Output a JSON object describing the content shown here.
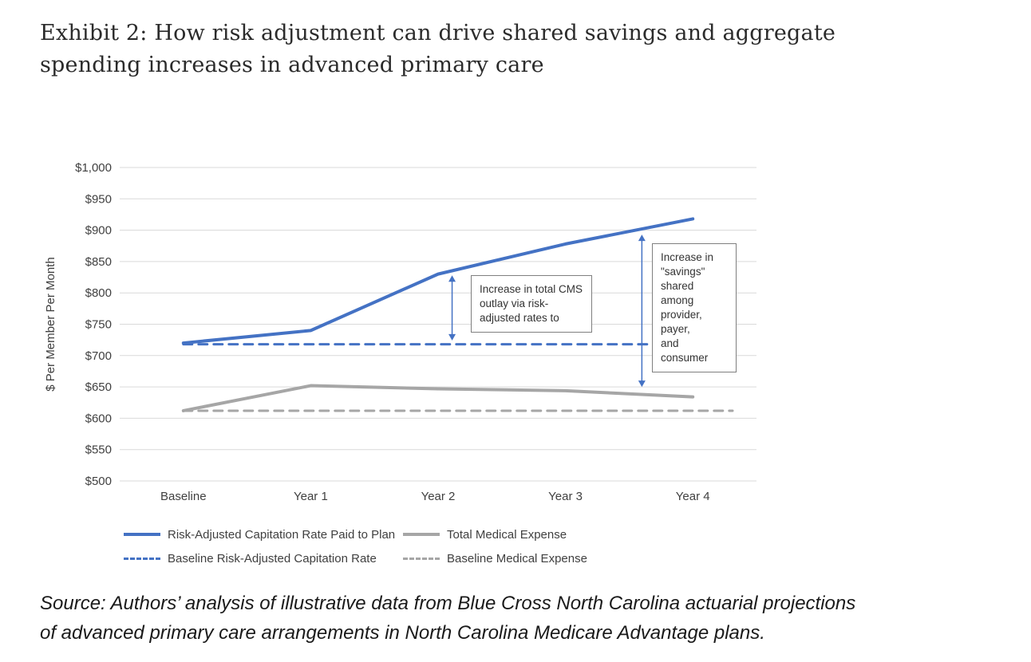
{
  "header": {
    "title_line1": "Exhibit 2: How risk adjustment can drive shared savings and aggregate",
    "title_line2": "spending increases in advanced primary care"
  },
  "chart_data": {
    "type": "line",
    "title": "",
    "xlabel": "",
    "ylabel": "$ Per Member Per Month",
    "ylim": [
      500,
      1000
    ],
    "ytick_step": 50,
    "ytick_labels": [
      "$500",
      "$550",
      "$600",
      "$650",
      "$700",
      "$750",
      "$800",
      "$850",
      "$900",
      "$950",
      "$1,000"
    ],
    "categories": [
      "Baseline",
      "Year 1",
      "Year 2",
      "Year 3",
      "Year 4"
    ],
    "grid": "horizontal",
    "legend_position": "bottom",
    "series": [
      {
        "name": "Risk-Adjusted Capitation Rate Paid to Plan",
        "color": "#4472C4",
        "dash": false,
        "stroke_width": 4,
        "values": [
          720,
          740,
          830,
          878,
          918
        ]
      },
      {
        "name": "Total Medical Expense",
        "color": "#A6A6A6",
        "dash": false,
        "stroke_width": 4,
        "values": [
          612,
          652,
          647,
          644,
          634
        ]
      },
      {
        "name": "Baseline Risk-Adjusted Capitation Rate",
        "color": "#4472C4",
        "dash": true,
        "stroke_width": 3,
        "values": [
          718,
          718,
          718,
          718,
          718
        ]
      },
      {
        "name": "Baseline Medical Expense",
        "color": "#A6A6A6",
        "dash": true,
        "stroke_width": 3,
        "values": [
          612,
          612,
          612,
          612,
          612
        ]
      }
    ],
    "annotations": [
      {
        "text": "Increase in total CMS\noutlay via risk-\nadjusted rates to"
      },
      {
        "text": "Increase in\n\"savings\"\nshared among\nprovider, payer,\nand consumer"
      }
    ],
    "arrows": [
      {
        "cat_x": 2.11,
        "from": 828,
        "to": 724,
        "color": "#4472C4"
      },
      {
        "cat_x": 3.6,
        "from": 893,
        "to": 650,
        "color": "#4472C4"
      }
    ]
  },
  "footer": {
    "source_line1": "Source: Authors’ analysis of illustrative data from Blue Cross North Carolina actuarial projections",
    "source_line2": "of advanced primary care arrangements in North Carolina Medicare Advantage plans."
  }
}
